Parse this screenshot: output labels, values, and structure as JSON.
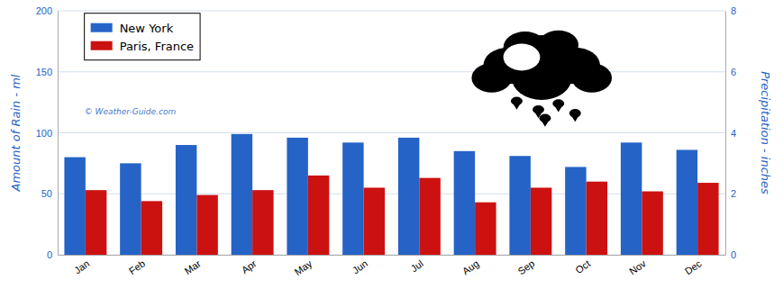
{
  "chart_data": {
    "type": "bar",
    "categories": [
      "Jan",
      "Feb",
      "Mar",
      "Apr",
      "May",
      "Jun",
      "Jul",
      "Aug",
      "Sep",
      "Oct",
      "Nov",
      "Dec"
    ],
    "series": [
      {
        "name": "New York",
        "color": "#2563c7",
        "values": [
          80,
          75,
          90,
          99,
          96,
          92,
          96,
          85,
          81,
          72,
          92,
          86
        ]
      },
      {
        "name": "Paris, France",
        "color": "#cc1111",
        "values": [
          53,
          44,
          49,
          53,
          65,
          55,
          63,
          43,
          55,
          60,
          52,
          59
        ]
      }
    ],
    "ylabel": "Amount of Rain - ml",
    "y2label": "Precipitation - inches",
    "ylim": [
      0,
      200
    ],
    "yticks": [
      0,
      50,
      100,
      150,
      200
    ],
    "y2lim": [
      0,
      8
    ],
    "y2ticks": [
      0,
      2,
      4,
      6,
      8
    ],
    "grid": true,
    "legend": "upper left",
    "annotations": [
      "© Weather-Guide.com"
    ]
  }
}
